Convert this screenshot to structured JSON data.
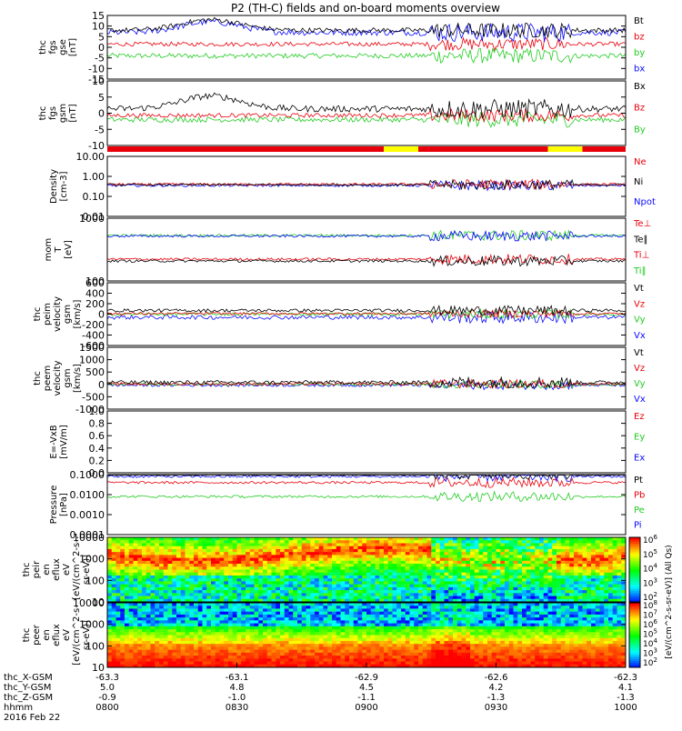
{
  "title": "P2 (TH-C) fields and on-board moments overview",
  "colors": {
    "black": "#000000",
    "red": "#e8000b",
    "green": "#22cc22",
    "blue": "#0a0aff",
    "yellow": "#ffff00"
  },
  "chart_data": {
    "type": "line",
    "x_axis": {
      "ticks": [
        "0800",
        "0830",
        "0900",
        "0930",
        "1000"
      ],
      "ephemeris": [
        {
          "label": "thc_X-GSM",
          "values": [
            "-63.3",
            "-63.1",
            "-62.9",
            "-62.6",
            "-62.3"
          ]
        },
        {
          "label": "thc_Y-GSM",
          "values": [
            "5.0",
            "4.8",
            "4.5",
            "4.2",
            "4.1"
          ]
        },
        {
          "label": "thc_Z-GSM",
          "values": [
            "-0.9",
            "-1.0",
            "-1.1",
            "-1.3",
            "-1.3"
          ]
        },
        {
          "label": "hhmm",
          "values": [
            "0800",
            "0830",
            "0900",
            "0930",
            "1000"
          ]
        }
      ],
      "date": "2016 Feb 22"
    },
    "panels": [
      {
        "id": "fgs_gse",
        "ylabel": [
          "thc",
          "fgs",
          "gse",
          "[nT]"
        ],
        "ylim": [
          -15,
          15
        ],
        "yticks": [
          "15",
          "10",
          "5",
          "0",
          "-5",
          "-10",
          "-15"
        ],
        "legend": [
          {
            "name": "Bt",
            "color": "black"
          },
          {
            "name": "bz",
            "color": "red"
          },
          {
            "name": "by",
            "color": "green"
          },
          {
            "name": "bx",
            "color": "blue"
          }
        ]
      },
      {
        "id": "fgs_gsm",
        "ylabel": [
          "thc",
          "fgs",
          "gsm",
          "[nT]"
        ],
        "ylim": [
          -15,
          15
        ],
        "yticks": [
          "10",
          "5",
          "0",
          "-5",
          "-10"
        ],
        "legend": [
          {
            "name": "Bx",
            "color": "black"
          },
          {
            "name": "Bz",
            "color": "red"
          },
          {
            "name": "By",
            "color": "green"
          }
        ]
      },
      {
        "id": "density",
        "ylabel": [
          "Density",
          "[cm-3]"
        ],
        "scale": "log",
        "ylim": [
          0.01,
          10
        ],
        "yticks": [
          "10.00",
          "1.00",
          "0.10",
          "0.01"
        ],
        "legend": [
          {
            "name": "Ne",
            "color": "red"
          },
          {
            "name": "Ni",
            "color": "black"
          },
          {
            "name": "Npot",
            "color": "blue"
          }
        ]
      },
      {
        "id": "temperature",
        "ylabel": [
          "mom",
          "T",
          "[eV]"
        ],
        "scale": "log",
        "ylim": [
          10,
          10000
        ],
        "yticks": [
          "1000",
          "100"
        ],
        "legend": [
          {
            "name": "Te⊥",
            "color": "red"
          },
          {
            "name": "Te∥",
            "color": "black"
          },
          {
            "name": "Ti⊥",
            "color": "red"
          },
          {
            "name": "Ti∥",
            "color": "green"
          }
        ]
      },
      {
        "id": "peim_velocity",
        "ylabel": [
          "thc",
          "peim",
          "velocity",
          "gsm",
          "[km/s]"
        ],
        "ylim": [
          -600,
          600
        ],
        "yticks": [
          "600",
          "400",
          "200",
          "0",
          "-200",
          "-400",
          "-600"
        ],
        "legend": [
          {
            "name": "Vt",
            "color": "black"
          },
          {
            "name": "Vz",
            "color": "red"
          },
          {
            "name": "Vy",
            "color": "green"
          },
          {
            "name": "Vx",
            "color": "blue"
          }
        ]
      },
      {
        "id": "peem_velocity",
        "ylabel": [
          "thc",
          "peem",
          "velocity",
          "gsm",
          "[km/s]"
        ],
        "ylim": [
          -1000,
          1500
        ],
        "yticks": [
          "1500",
          "1000",
          "500",
          "0",
          "-500",
          "-1000"
        ],
        "legend": [
          {
            "name": "Vt",
            "color": "black"
          },
          {
            "name": "Vz",
            "color": "red"
          },
          {
            "name": "Vy",
            "color": "green"
          },
          {
            "name": "Vx",
            "color": "blue"
          }
        ]
      },
      {
        "id": "efield",
        "ylabel": [
          "E=-VxB",
          "[mV/m]"
        ],
        "ylim": [
          0,
          1
        ],
        "yticks": [
          "1.0",
          "0.8",
          "0.6",
          "0.4",
          "0.2",
          "0.0"
        ],
        "legend": [
          {
            "name": "Ez",
            "color": "red"
          },
          {
            "name": "Ey",
            "color": "green"
          },
          {
            "name": "Ex",
            "color": "blue"
          }
        ]
      },
      {
        "id": "pressure",
        "ylabel": [
          "Pressure",
          "[nPa]"
        ],
        "scale": "log",
        "ylim": [
          0.0001,
          0.1
        ],
        "yticks": [
          "0.1000",
          "0.0100",
          "0.0010",
          "0.0001"
        ],
        "legend": [
          {
            "name": "Pt",
            "color": "black"
          },
          {
            "name": "Pb",
            "color": "red"
          },
          {
            "name": "Pe",
            "color": "green"
          },
          {
            "name": "Pi",
            "color": "blue"
          }
        ]
      },
      {
        "id": "peir_spec",
        "type": "heatmap",
        "ylabel": [
          "thc",
          "peir",
          "en",
          "eflux",
          "eV",
          "[eV/(cm^2-s-",
          "sr-eV)]"
        ],
        "scale": "log",
        "ylim": [
          5,
          30000
        ],
        "yticks": [
          "10000",
          "1000",
          "100",
          "10"
        ]
      },
      {
        "id": "peer_spec",
        "type": "heatmap",
        "ylabel": [
          "thc",
          "peer",
          "en",
          "eflux",
          "eV",
          "[eV/(cm^2-s-",
          "sr-eV)]"
        ],
        "scale": "log",
        "ylim": [
          5,
          30000
        ],
        "yticks": [
          "10000",
          "1000",
          "100",
          "10"
        ]
      }
    ],
    "mode_bar": {
      "segments": [
        {
          "from": "0800",
          "to": "0904",
          "color": "red"
        },
        {
          "from": "0904",
          "to": "0912",
          "color": "yellow"
        },
        {
          "from": "0912",
          "to": "0942",
          "color": "red"
        },
        {
          "from": "0942",
          "to": "0950",
          "color": "yellow"
        },
        {
          "from": "0950",
          "to": "1000",
          "color": "red"
        }
      ]
    },
    "colorbar": {
      "label": "[eV/(cm^2-s-sr-eV)] (All Qs)",
      "ticks_upper": [
        "10^6",
        "10^5",
        "10^4",
        "10^3",
        "10^2"
      ],
      "ticks_lower": [
        "10^8",
        "10^7",
        "10^6",
        "10^5",
        "10^4",
        "10^3",
        "10^2"
      ]
    }
  }
}
